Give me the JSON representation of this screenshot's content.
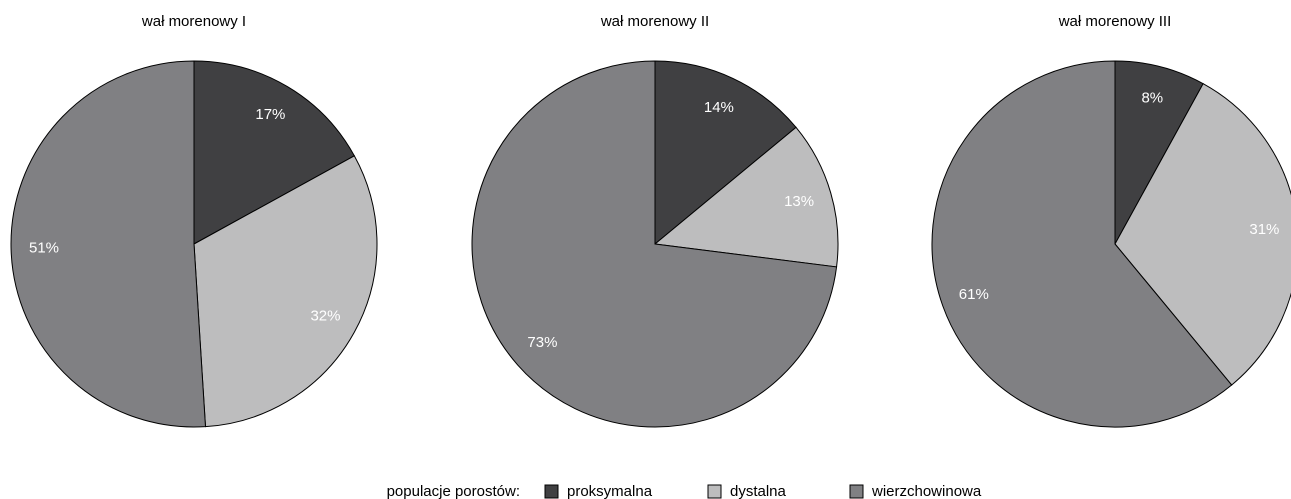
{
  "chart_data": [
    {
      "type": "pie",
      "title": "wał morenowy I",
      "categories": [
        "proksymalna",
        "dystalna",
        "wierzchowinowa"
      ],
      "values": [
        17,
        32,
        51
      ],
      "colors": [
        "#404042",
        "#bdbdbe",
        "#808083"
      ]
    },
    {
      "type": "pie",
      "title": "wał morenowy II",
      "categories": [
        "proksymalna",
        "dystalna",
        "wierzchowinowa"
      ],
      "values": [
        14,
        13,
        73
      ],
      "colors": [
        "#404042",
        "#bdbdbe",
        "#808083"
      ]
    },
    {
      "type": "pie",
      "title": "wał morenowy III",
      "categories": [
        "proksymalna",
        "dystalna",
        "wierzchowinowa"
      ],
      "values": [
        8,
        31,
        61
      ],
      "colors": [
        "#404042",
        "#bdbdbe",
        "#808083"
      ]
    }
  ],
  "legend": {
    "title": "populacje porostów:",
    "unit": "%"
  }
}
